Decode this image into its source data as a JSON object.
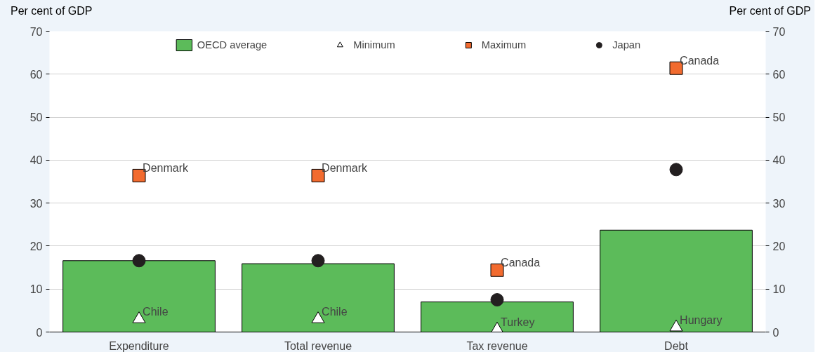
{
  "chart_data": {
    "type": "bar",
    "ylabel": "Per cent of GDP",
    "y2label": "Per cent of GDP",
    "categories": [
      "Expenditure",
      "Total revenue",
      "Tax revenue",
      "Debt"
    ],
    "series": [
      {
        "name": "OECD average",
        "color": "#5cbb5a",
        "values": [
          16.6,
          15.9,
          7.0,
          23.7
        ]
      },
      {
        "name": "Minimum",
        "type": "scatter",
        "marker": "triangle",
        "color": "#ffffff",
        "values": [
          3.0,
          3.0,
          0.6,
          1.1
        ]
      },
      {
        "name": "Maximum",
        "type": "scatter",
        "marker": "square",
        "color": "#f26b2f",
        "values": [
          36.4,
          36.4,
          14.4,
          61.4
        ]
      },
      {
        "name": "Japan",
        "type": "scatter",
        "marker": "circle",
        "color": "#231f20",
        "values": [
          16.6,
          16.6,
          7.5,
          37.8
        ]
      }
    ],
    "annotations": [
      {
        "text": "Denmark",
        "x": "Expenditure",
        "y": 36.4
      },
      {
        "text": "Denmark",
        "x": "Total revenue",
        "y": 36.4
      },
      {
        "text": "Canada",
        "x": "Tax revenue",
        "y": 14.4
      },
      {
        "text": "Canada",
        "x": "Debt",
        "y": 61.4
      },
      {
        "text": "Chile",
        "x": "Expenditure",
        "y": 3.0
      },
      {
        "text": "Chile",
        "x": "Total revenue",
        "y": 3.0
      },
      {
        "text": "Turkey",
        "x": "Tax revenue",
        "y": 0.6
      },
      {
        "text": "Hungary",
        "x": "Debt",
        "y": 1.1
      }
    ],
    "ylim": [
      0,
      70
    ],
    "yticks": [
      0,
      10,
      20,
      30,
      40,
      50,
      60,
      70
    ],
    "y2lim": [
      0,
      70
    ],
    "y2ticks": [
      0,
      10,
      20,
      30,
      40,
      50,
      60,
      70
    ],
    "grid": "y",
    "legend": "top"
  }
}
